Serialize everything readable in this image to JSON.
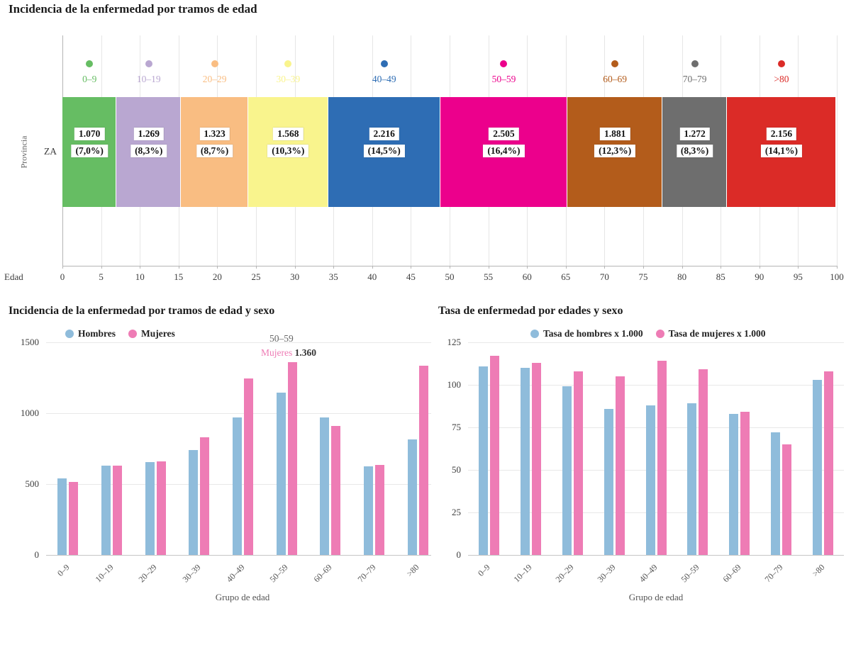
{
  "chart_data": [
    {
      "type": "bar",
      "variant": "stacked-horizontal",
      "title": "Incidencia de la enfermedad por tramos de edad",
      "ylabel": "Provincia",
      "row_label": "ZA",
      "xlabel": "Edad",
      "xlim": [
        0,
        100
      ],
      "x_ticks": [
        0,
        5,
        10,
        15,
        20,
        25,
        30,
        35,
        40,
        45,
        50,
        55,
        60,
        65,
        70,
        75,
        80,
        85,
        90,
        95,
        100
      ],
      "segments": [
        {
          "label": "0–9",
          "value": 1070,
          "value_label": "1.070",
          "pct": 7.0,
          "pct_label": "(7,0%)",
          "color": "#66bd63"
        },
        {
          "label": "10–19",
          "value": 1269,
          "value_label": "1.269",
          "pct": 8.3,
          "pct_label": "(8,3%)",
          "color": "#b9a7d1"
        },
        {
          "label": "20–29",
          "value": 1323,
          "value_label": "1.323",
          "pct": 8.7,
          "pct_label": "(8,7%)",
          "color": "#f9bd82"
        },
        {
          "label": "30–39",
          "value": 1568,
          "value_label": "1.568",
          "pct": 10.3,
          "pct_label": "(10,3%)",
          "color": "#f9f48d"
        },
        {
          "label": "40–49",
          "value": 2216,
          "value_label": "2.216",
          "pct": 14.5,
          "pct_label": "(14,5%)",
          "color": "#2e6db4"
        },
        {
          "label": "50–59",
          "value": 2505,
          "value_label": "2.505",
          "pct": 16.4,
          "pct_label": "(16,4%)",
          "color": "#ec008c"
        },
        {
          "label": "60–69",
          "value": 1881,
          "value_label": "1.881",
          "pct": 12.3,
          "pct_label": "(12,3%)",
          "color": "#b35c1b"
        },
        {
          "label": "70–79",
          "value": 1272,
          "value_label": "1.272",
          "pct": 8.3,
          "pct_label": "(8,3%)",
          "color": "#6e6e6e"
        },
        {
          "label": ">80",
          "value": 2156,
          "value_label": "2.156",
          "pct": 14.1,
          "pct_label": "(14,1%)",
          "color": "#db2b27"
        }
      ]
    },
    {
      "type": "bar",
      "variant": "grouped-vertical",
      "title": "Incidencia de la enfermedad por tramos de edad y sexo",
      "categories": [
        "0–9",
        "10–19",
        "20–29",
        "30–39",
        "40–49",
        "50–59",
        "60–69",
        "70–79",
        ">80"
      ],
      "series": [
        {
          "name": "Hombres",
          "color": "#8fbcdb",
          "values": [
            540,
            630,
            655,
            740,
            970,
            1145,
            970,
            625,
            815
          ]
        },
        {
          "name": "Mujeres",
          "color": "#ee7cb5",
          "values": [
            515,
            630,
            660,
            830,
            1245,
            1360,
            910,
            635,
            1335
          ]
        }
      ],
      "xlabel": "Grupo de edad",
      "ylim": [
        0,
        1500
      ],
      "y_ticks": [
        0,
        500,
        1000,
        1500
      ],
      "grid": "horizontal",
      "legend_position": "top",
      "annotation": {
        "category": "50–59",
        "series": "Mujeres",
        "value_label": "1.360"
      }
    },
    {
      "type": "bar",
      "variant": "grouped-vertical",
      "title": "Tasa de enfermedad por edades y sexo",
      "categories": [
        "0–9",
        "10–19",
        "20–29",
        "30–39",
        "40–49",
        "50–59",
        "60–69",
        "70–79",
        ">80"
      ],
      "series": [
        {
          "name": "Tasa de hombres x 1.000",
          "color": "#8fbcdb",
          "values": [
            111,
            110,
            99,
            86,
            88,
            89,
            83,
            72,
            103
          ]
        },
        {
          "name": "Tasa de mujeres x 1.000",
          "color": "#ee7cb5",
          "values": [
            117,
            113,
            108,
            105,
            114,
            109,
            84,
            65,
            108
          ]
        }
      ],
      "xlabel": "Grupo de edad",
      "ylim": [
        0,
        125
      ],
      "y_ticks": [
        0,
        25,
        50,
        75,
        100,
        125
      ],
      "grid": "horizontal",
      "legend_position": "top"
    }
  ]
}
